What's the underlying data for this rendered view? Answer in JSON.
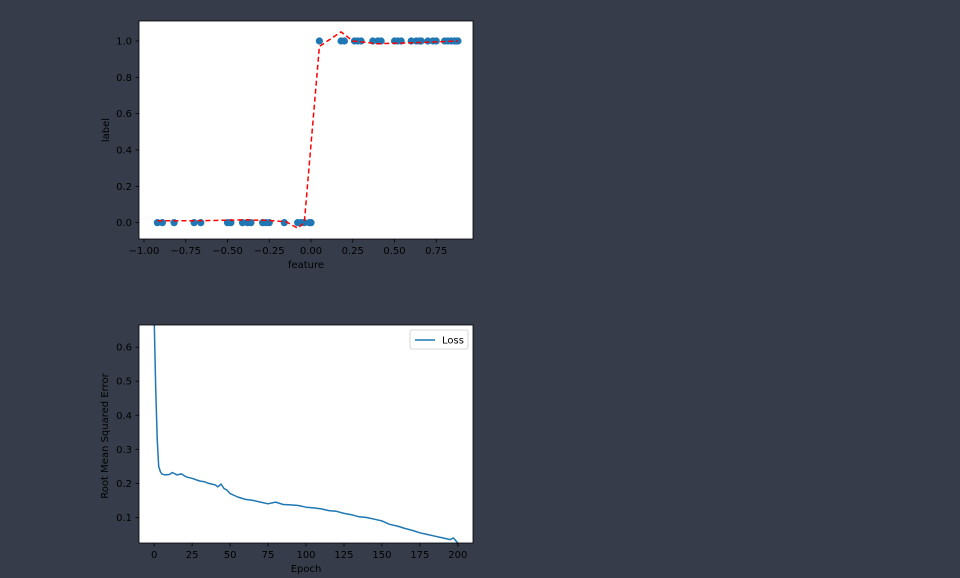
{
  "colors": {
    "page_background": "#363c4a",
    "axes_background": "#ffffff",
    "scatter": "#1f77b4",
    "fit_line": "#ff0000",
    "loss_line": "#1f77b4"
  },
  "chart_data": [
    {
      "type": "scatter",
      "title": "",
      "xlabel": "feature",
      "ylabel": "label",
      "xlim": [
        -1.03,
        0.97
      ],
      "ylim": [
        -0.09,
        1.11
      ],
      "xticks": [
        -1.0,
        -0.75,
        -0.5,
        -0.25,
        0.0,
        0.25,
        0.5,
        0.75
      ],
      "xtick_labels": [
        "−1.00",
        "−0.75",
        "−0.50",
        "−0.25",
        "0.00",
        "0.25",
        "0.50",
        "0.75"
      ],
      "yticks": [
        0.0,
        0.2,
        0.4,
        0.6,
        0.8,
        1.0
      ],
      "ytick_labels": [
        "0.0",
        "0.2",
        "0.4",
        "0.6",
        "0.8",
        "1.0"
      ],
      "grid": false,
      "series": [
        {
          "kind": "points",
          "x": [
            -0.92,
            -0.89,
            -0.82,
            -0.7,
            -0.66,
            -0.5,
            -0.48,
            -0.41,
            -0.38,
            -0.36,
            -0.29,
            -0.27,
            -0.25,
            -0.16,
            -0.08,
            -0.06,
            -0.04,
            -0.01,
            -0.0,
            0.05,
            0.18,
            0.2,
            0.26,
            0.28,
            0.3,
            0.37,
            0.4,
            0.42,
            0.5,
            0.52,
            0.54,
            0.6,
            0.63,
            0.65,
            0.66,
            0.7,
            0.73,
            0.75,
            0.8,
            0.82,
            0.84,
            0.86,
            0.87,
            0.88
          ],
          "y": [
            0,
            0,
            0,
            0,
            0,
            0,
            0,
            0,
            0,
            0,
            0,
            0,
            0,
            0,
            0,
            0,
            0,
            0,
            0,
            1,
            1,
            1,
            1,
            1,
            1,
            1,
            1,
            1,
            1,
            1,
            1,
            1,
            1,
            1,
            1,
            1,
            1,
            1,
            1,
            1,
            1,
            1,
            1,
            1
          ]
        },
        {
          "kind": "dashed-line",
          "x": [
            -0.92,
            -0.75,
            -0.6,
            -0.4,
            -0.25,
            -0.15,
            -0.08,
            -0.04,
            0.05,
            0.18,
            0.25,
            0.4,
            0.6,
            0.75,
            0.88
          ],
          "y": [
            0.01,
            0.01,
            0.012,
            0.015,
            0.012,
            0.005,
            -0.03,
            0.0,
            0.97,
            1.05,
            1.0,
            0.985,
            0.99,
            0.995,
            1.0
          ]
        }
      ]
    },
    {
      "type": "line",
      "title": "",
      "xlabel": "Epoch",
      "ylabel": "Root Mean Squared Error",
      "xlim": [
        -10,
        210
      ],
      "ylim": [
        0.025,
        0.665
      ],
      "xticks": [
        0,
        25,
        50,
        75,
        100,
        125,
        150,
        175,
        200
      ],
      "xtick_labels": [
        "0",
        "25",
        "50",
        "75",
        "100",
        "125",
        "150",
        "175",
        "200"
      ],
      "yticks": [
        0.1,
        0.2,
        0.3,
        0.4,
        0.5,
        0.6
      ],
      "ytick_labels": [
        "0.1",
        "0.2",
        "0.3",
        "0.4",
        "0.5",
        "0.6"
      ],
      "grid": false,
      "legend": "upper-right",
      "series": [
        {
          "name": "Loss",
          "x": [
            0,
            1,
            2,
            3,
            4,
            5,
            7,
            10,
            12,
            15,
            18,
            20,
            22,
            25,
            28,
            30,
            33,
            36,
            38,
            40,
            42,
            44,
            46,
            48,
            50,
            55,
            60,
            65,
            70,
            75,
            80,
            85,
            90,
            95,
            100,
            105,
            110,
            115,
            120,
            125,
            130,
            135,
            140,
            145,
            150,
            155,
            160,
            165,
            170,
            175,
            180,
            185,
            190,
            195,
            197,
            200
          ],
          "y": [
            0.68,
            0.48,
            0.33,
            0.25,
            0.235,
            0.228,
            0.225,
            0.226,
            0.232,
            0.225,
            0.228,
            0.222,
            0.218,
            0.215,
            0.21,
            0.207,
            0.205,
            0.2,
            0.198,
            0.196,
            0.19,
            0.198,
            0.185,
            0.18,
            0.17,
            0.16,
            0.153,
            0.15,
            0.145,
            0.14,
            0.145,
            0.138,
            0.137,
            0.135,
            0.13,
            0.128,
            0.125,
            0.12,
            0.118,
            0.112,
            0.108,
            0.102,
            0.1,
            0.095,
            0.09,
            0.08,
            0.075,
            0.068,
            0.062,
            0.055,
            0.05,
            0.045,
            0.04,
            0.035,
            0.04,
            0.025
          ]
        }
      ]
    }
  ]
}
